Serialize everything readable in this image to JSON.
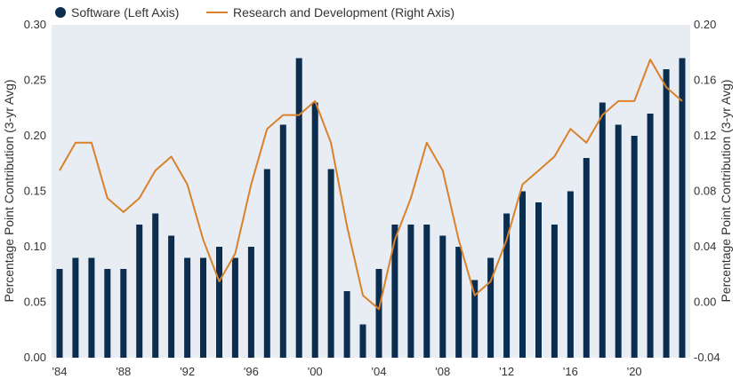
{
  "chart_data": {
    "type": "bar+line",
    "title": "",
    "x": [
      "1984",
      "1985",
      "1986",
      "1987",
      "1988",
      "1989",
      "1990",
      "1991",
      "1992",
      "1993",
      "1994",
      "1995",
      "1996",
      "1997",
      "1998",
      "1999",
      "2000",
      "2001",
      "2002",
      "2003",
      "2004",
      "2005",
      "2006",
      "2007",
      "2008",
      "2009",
      "2010",
      "2011",
      "2012",
      "2013",
      "2014",
      "2015",
      "2016",
      "2017",
      "2018",
      "2019",
      "2020",
      "2021",
      "2022",
      "2023"
    ],
    "x_tick_labels": [
      "'84",
      "'88",
      "'92",
      "'96",
      "'00",
      "'04",
      "'08",
      "'12",
      "'16",
      "'20"
    ],
    "x_tick_years": [
      "1984",
      "1988",
      "1992",
      "1996",
      "2000",
      "2004",
      "2008",
      "2012",
      "2016",
      "2020"
    ],
    "series": [
      {
        "name": "Software (Left Axis)",
        "kind": "bar",
        "axis": "left",
        "color": "#0b2d4f",
        "values": [
          0.08,
          0.09,
          0.09,
          0.08,
          0.08,
          0.12,
          0.13,
          0.11,
          0.09,
          0.09,
          0.1,
          0.09,
          0.1,
          0.17,
          0.21,
          0.27,
          0.23,
          0.17,
          0.06,
          0.03,
          0.08,
          0.12,
          0.12,
          0.12,
          0.11,
          0.1,
          0.07,
          0.09,
          0.13,
          0.15,
          0.14,
          0.12,
          0.15,
          0.18,
          0.23,
          0.21,
          0.2,
          0.22,
          0.26,
          0.27
        ]
      },
      {
        "name": "Research and Development (Right Axis)",
        "kind": "line",
        "axis": "right",
        "color": "#d9822b",
        "values": [
          0.095,
          0.115,
          0.115,
          0.075,
          0.065,
          0.075,
          0.095,
          0.105,
          0.085,
          0.045,
          0.015,
          0.035,
          0.085,
          0.125,
          0.135,
          0.135,
          0.145,
          0.115,
          0.055,
          0.005,
          -0.005,
          0.045,
          0.075,
          0.115,
          0.095,
          0.045,
          0.005,
          0.015,
          0.045,
          0.085,
          0.095,
          0.105,
          0.125,
          0.115,
          0.135,
          0.145,
          0.145,
          0.175,
          0.155,
          0.145
        ]
      }
    ],
    "y_left": {
      "label": "Percentage Point Contribution (3-yr Avg)",
      "ylim": [
        0,
        0.3
      ],
      "ticks": [
        "0.00",
        "0.05",
        "0.10",
        "0.15",
        "0.20",
        "0.25",
        "0.30"
      ]
    },
    "y_right": {
      "label": "Percentage Point Contribution (3-yr Avg)",
      "ylim": [
        -0.04,
        0.2
      ],
      "ticks": [
        "-0.04",
        "0.00",
        "0.04",
        "0.08",
        "0.12",
        "0.16",
        "0.20"
      ]
    },
    "grid": false,
    "legend_position": "top-left",
    "plot_background": "#e8ecf3"
  }
}
